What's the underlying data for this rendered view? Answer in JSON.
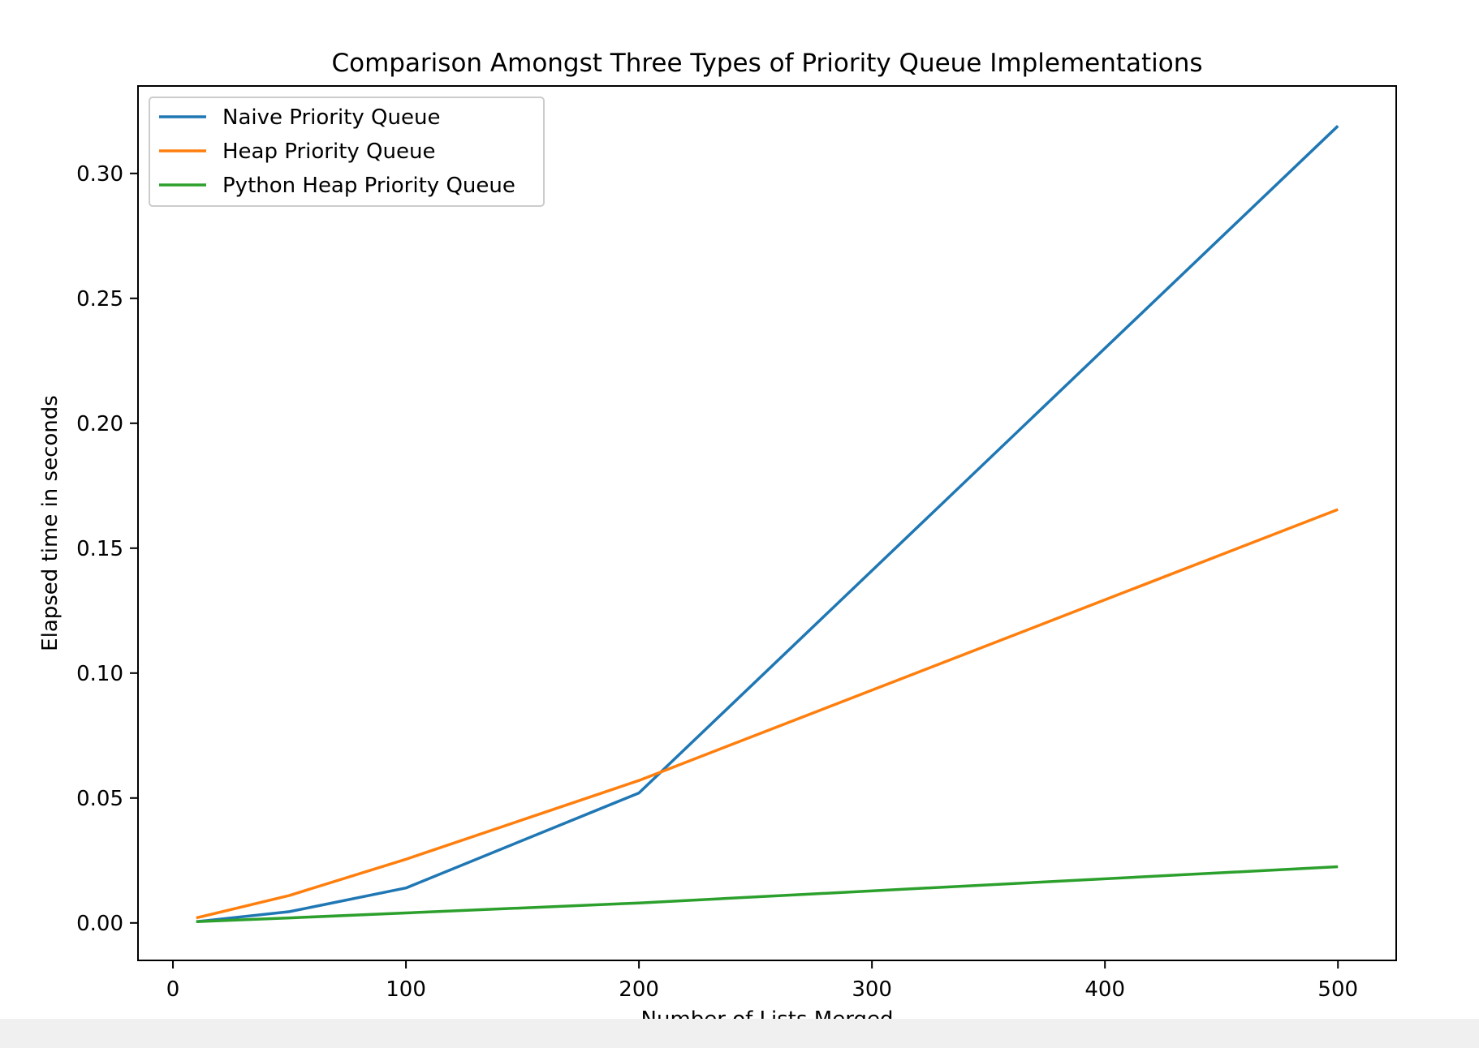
{
  "chart_data": {
    "type": "line",
    "title": "Comparison Amongst Three Types of Priority Queue Implementations",
    "xlabel": "Number of Lists Merged",
    "ylabel": "Elapsed time in seconds",
    "xlim": [
      -15,
      525
    ],
    "ylim": [
      -0.015,
      0.335
    ],
    "xticks": [
      0,
      100,
      200,
      300,
      400,
      500
    ],
    "xtick_labels": [
      "0",
      "100",
      "200",
      "300",
      "400",
      "500"
    ],
    "yticks": [
      0.0,
      0.05,
      0.1,
      0.15,
      0.2,
      0.25,
      0.3
    ],
    "ytick_labels": [
      "0.00",
      "0.05",
      "0.10",
      "0.15",
      "0.20",
      "0.25",
      "0.30"
    ],
    "grid": false,
    "legend_position": "upper-left",
    "x": [
      10,
      50,
      100,
      200,
      500
    ],
    "series": [
      {
        "name": "Naive Priority Queue",
        "color": "#1f77b4",
        "values": [
          0.0005,
          0.0045,
          0.014,
          0.052,
          0.319
        ]
      },
      {
        "name": "Heap Priority Queue",
        "color": "#ff7f0e",
        "values": [
          0.002,
          0.011,
          0.0255,
          0.057,
          0.1655
        ]
      },
      {
        "name": "Python Heap Priority Queue",
        "color": "#2ca02c",
        "values": [
          0.0005,
          0.002,
          0.004,
          0.008,
          0.0225
        ]
      }
    ]
  }
}
